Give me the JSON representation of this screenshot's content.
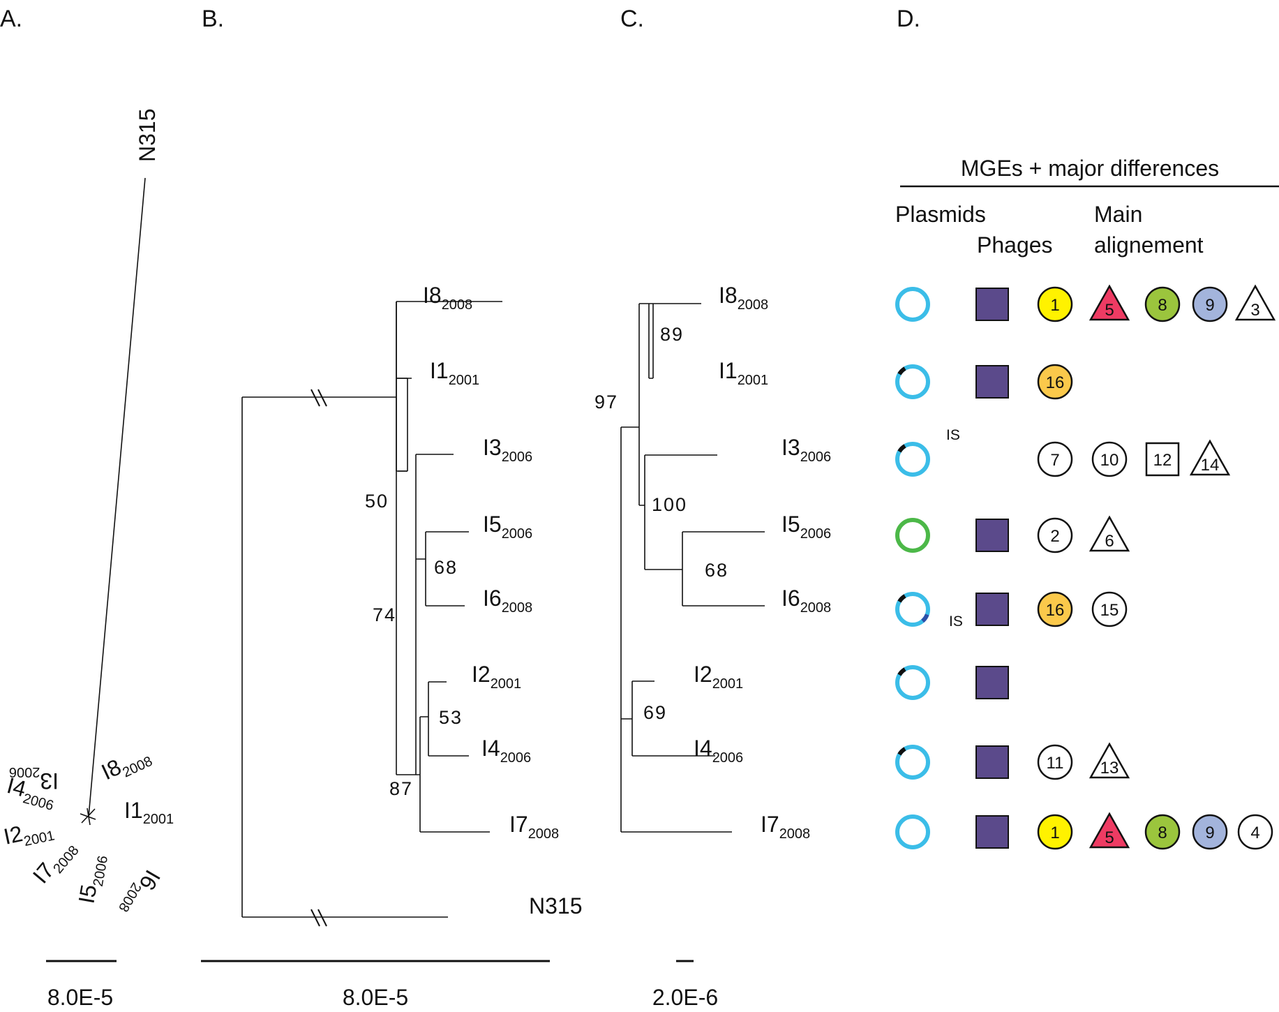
{
  "panels": {
    "a": {
      "letter": "A.",
      "long_branch_label": "N315",
      "tips": [
        {
          "name": "I3",
          "year": "2006"
        },
        {
          "name": "I8",
          "year": "2008"
        },
        {
          "name": "I4",
          "year": "2006"
        },
        {
          "name": "I1",
          "year": "2001"
        },
        {
          "name": "I2",
          "year": "2001"
        },
        {
          "name": "I7",
          "year": "2008"
        },
        {
          "name": "I5",
          "year": "2006"
        },
        {
          "name": "I6",
          "year": "2008"
        }
      ],
      "scale": "8.0E-5"
    },
    "b": {
      "letter": "B.",
      "tips": [
        {
          "name": "I8",
          "year": "2008"
        },
        {
          "name": "I1",
          "year": "2001"
        },
        {
          "name": "I3",
          "year": "2006"
        },
        {
          "name": "I5",
          "year": "2006"
        },
        {
          "name": "I6",
          "year": "2008"
        },
        {
          "name": "I2",
          "year": "2001"
        },
        {
          "name": "I4",
          "year": "2006"
        },
        {
          "name": "I7",
          "year": "2008"
        }
      ],
      "outgroup": "N315",
      "bootstrap": [
        "50",
        "68",
        "74",
        "53",
        "87"
      ],
      "scale": "8.0E-5"
    },
    "c": {
      "letter": "C.",
      "tips": [
        {
          "name": "I8",
          "year": "2008"
        },
        {
          "name": "I1",
          "year": "2001"
        },
        {
          "name": "I3",
          "year": "2006"
        },
        {
          "name": "I5",
          "year": "2006"
        },
        {
          "name": "I6",
          "year": "2008"
        },
        {
          "name": "I2",
          "year": "2001"
        },
        {
          "name": "I4",
          "year": "2006"
        },
        {
          "name": "I7",
          "year": "2008"
        }
      ],
      "bootstrap": [
        "89",
        "97",
        "100",
        "68",
        "69"
      ],
      "scale": "2.0E-6"
    },
    "d": {
      "letter": "D.",
      "header": "MGEs + major differences",
      "col_plasmids": "Plasmids",
      "col_phages": "Phages",
      "col_main_line1": "Main",
      "col_main_line2": "alignement",
      "is_label": "IS",
      "colors": {
        "plasmid_ring": "#3bbde8",
        "plasmid_green": "#4cb848",
        "phage": "#5b4a8b",
        "yellow": "#fff200",
        "red": "#ee3b63",
        "green": "#9bc53d",
        "blue": "#a3b4dc",
        "orange": "#fbc94b"
      },
      "rows": [
        {
          "plasmid": "plain",
          "phage": true,
          "items": [
            {
              "shape": "circle",
              "label": "1",
              "color": "yellow"
            },
            {
              "shape": "triangle",
              "label": "5",
              "color": "red"
            },
            {
              "shape": "circle",
              "label": "8",
              "color": "green"
            },
            {
              "shape": "circle",
              "label": "9",
              "color": "blue"
            },
            {
              "shape": "triangle",
              "label": "3",
              "color": "white"
            }
          ]
        },
        {
          "plasmid": "mark",
          "phage": true,
          "items": [
            {
              "shape": "circle",
              "label": "16",
              "color": "orange"
            }
          ]
        },
        {
          "plasmid": "mark-is",
          "phage": false,
          "items": [
            {
              "shape": "circle",
              "label": "7",
              "color": "white"
            },
            {
              "shape": "circle",
              "label": "10",
              "color": "white"
            },
            {
              "shape": "square",
              "label": "12",
              "color": "white"
            },
            {
              "shape": "triangle",
              "label": "14",
              "color": "white"
            }
          ]
        },
        {
          "plasmid": "green",
          "phage": true,
          "items": [
            {
              "shape": "circle",
              "label": "2",
              "color": "white"
            },
            {
              "shape": "triangle",
              "label": "6",
              "color": "white"
            }
          ]
        },
        {
          "plasmid": "mark-is-blue",
          "phage": true,
          "items": [
            {
              "shape": "circle",
              "label": "16",
              "color": "orange"
            },
            {
              "shape": "circle",
              "label": "15",
              "color": "white"
            }
          ]
        },
        {
          "plasmid": "mark",
          "phage": true,
          "items": []
        },
        {
          "plasmid": "mark",
          "phage": true,
          "items": [
            {
              "shape": "circle",
              "label": "11",
              "color": "white"
            },
            {
              "shape": "triangle",
              "label": "13",
              "color": "white"
            }
          ]
        },
        {
          "plasmid": "plain",
          "phage": true,
          "items": [
            {
              "shape": "circle",
              "label": "1",
              "color": "yellow"
            },
            {
              "shape": "triangle",
              "label": "5",
              "color": "red"
            },
            {
              "shape": "circle",
              "label": "8",
              "color": "green"
            },
            {
              "shape": "circle",
              "label": "9",
              "color": "blue"
            },
            {
              "shape": "circle",
              "label": "4",
              "color": "white"
            }
          ]
        }
      ]
    }
  }
}
